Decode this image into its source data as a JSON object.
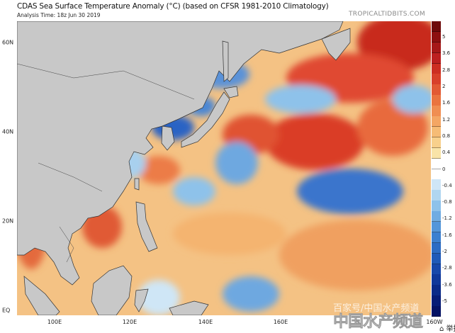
{
  "header": {
    "title": "CDAS Sea Surface Temperature Anomaly (°C) (based on CFSR 1981-2010 Climatology)",
    "subtitle": "Analysis Time: 18z Jun 30 2019",
    "brand": "TROPICALTIDBITS.COM"
  },
  "map": {
    "lat_labels": [
      "60N",
      "40N",
      "20N",
      "EQ"
    ],
    "lon_labels": [
      "100E",
      "120E",
      "140E",
      "160E",
      "160W"
    ],
    "land_color": "#c8c8c8",
    "warm_color": "#d8432a",
    "cool_color": "#2a6cc8"
  },
  "colorbar": {
    "units": "°C",
    "tick_labels": [
      "5",
      "3.6",
      "2.8",
      "2",
      "1.6",
      "1.2",
      "0.8",
      "0.4",
      "0",
      "-0.4",
      "-0.8",
      "-1.2",
      "-1.6",
      "-2",
      "-2.8",
      "-3.6",
      "-5"
    ],
    "colors": [
      "#6e0a0a",
      "#8c1010",
      "#a51818",
      "#bc2020",
      "#cc2e22",
      "#d8402a",
      "#e25a34",
      "#ea7440",
      "#f08e52",
      "#f4a664",
      "#f6bc76",
      "#f8d08c",
      "#f9e4a8",
      "#ffffff",
      "#ffffff",
      "#cfe6f6",
      "#b0d6f0",
      "#8ec2ea",
      "#70ace2",
      "#5496da",
      "#3c80d0",
      "#2c6cc4",
      "#205ab8",
      "#1848aa",
      "#10389a",
      "#0a2a88",
      "#061c76",
      "#041264"
    ]
  },
  "watermark": {
    "line1": "百家号/中国水产频道",
    "line2": "中国水产频道",
    "report": "举报"
  }
}
